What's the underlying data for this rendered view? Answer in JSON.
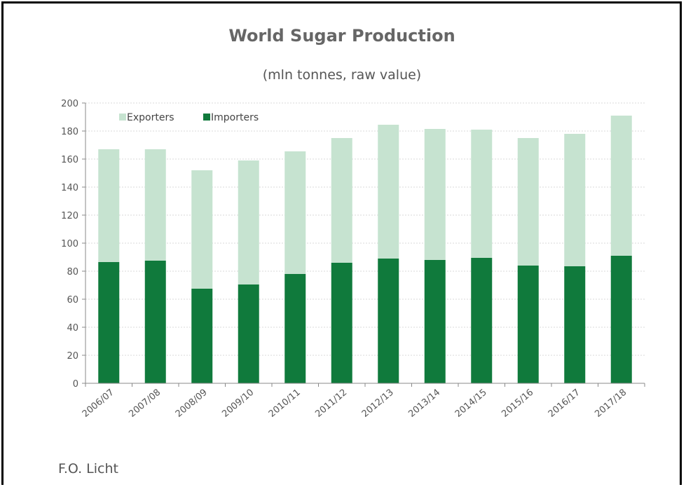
{
  "chart_data": {
    "type": "bar",
    "stacked": true,
    "title": "World Sugar Production",
    "subtitle": "(mln tonnes, raw value)",
    "source": "F.O. Licht",
    "categories": [
      "2006/07",
      "2007/08",
      "2008/09",
      "2009/10",
      "2010/11",
      "2011/12",
      "2012/13",
      "2013/14",
      "2014/15",
      "2015/16",
      "2016/17",
      "2017/18"
    ],
    "series": [
      {
        "name": "Importers",
        "color": "#107a3c",
        "values": [
          86.5,
          87.5,
          67.5,
          70.5,
          78,
          86,
          89,
          88,
          89.5,
          84,
          83.5,
          91
        ]
      },
      {
        "name": "Exporters",
        "color": "#c6e3d0",
        "values": [
          80.5,
          79.5,
          84.5,
          88.5,
          87.5,
          89,
          95.5,
          93.5,
          91.5,
          91,
          94.5,
          100
        ]
      }
    ],
    "ylim": [
      0,
      200
    ],
    "yticks": [
      0,
      20,
      40,
      60,
      80,
      100,
      120,
      140,
      160,
      180,
      200
    ],
    "grid": true,
    "legend_position": "top-left",
    "legend_order": [
      "Exporters",
      "Importers"
    ]
  }
}
